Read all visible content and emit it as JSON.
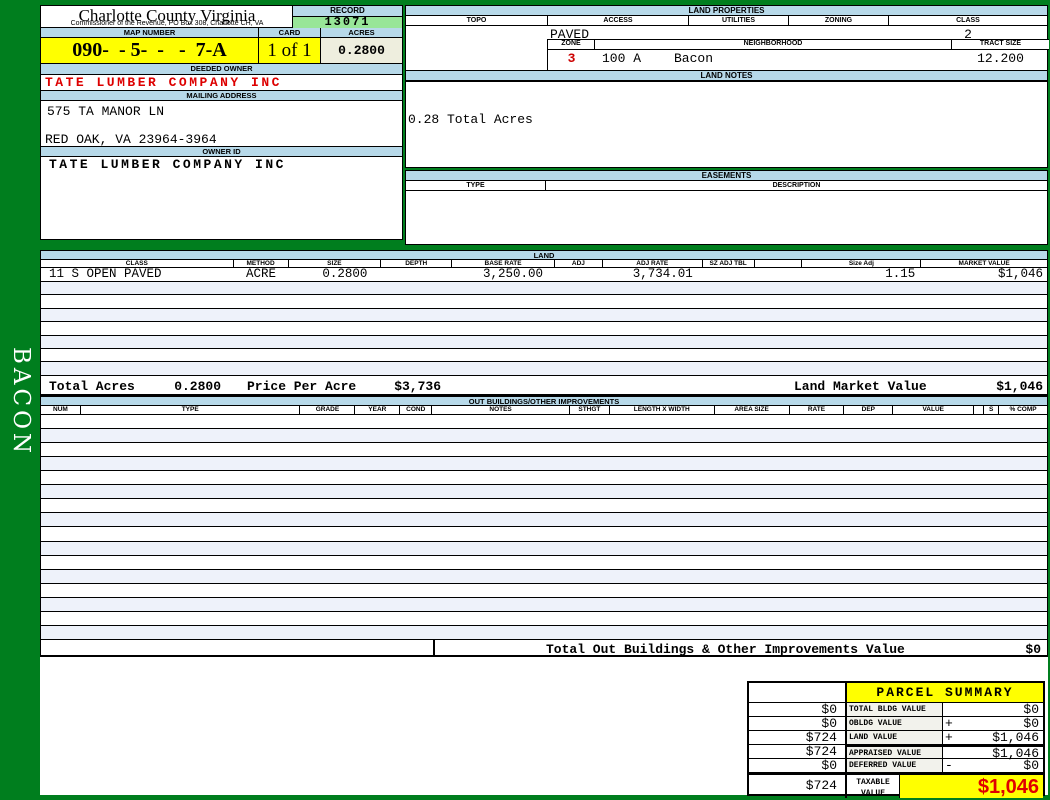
{
  "page": {
    "district_sidebar": "BACON"
  },
  "header": {
    "county_title": "Charlotte County Virginia",
    "commissioner_line": "Commissioner of the Revenue, PO Box 308, Charlotte CH, VA",
    "record_label": "RECORD",
    "record_value": "13071",
    "map_number_label": "MAP NUMBER",
    "map_number_value": "090-  - 5-  -   -  7-A",
    "card_label": "CARD",
    "card_value": "1 of 1",
    "acres_label": "ACRES",
    "acres_value": "0.2800"
  },
  "owner": {
    "deeded_owner_label": "DEEDED OWNER",
    "deeded_owner": "TATE LUMBER COMPANY INC",
    "mailing_address_label": "MAILING ADDRESS",
    "address_line1": "575 TA MANOR LN",
    "address_line2": "RED OAK, VA 23964-3964",
    "owner_id_label": "OWNER ID",
    "owner_id": "TATE LUMBER COMPANY INC"
  },
  "land_properties": {
    "title": "LAND PROPERTIES",
    "columns": [
      "TOPO",
      "ACCESS",
      "UTILITIES",
      "ZONING",
      "CLASS"
    ],
    "access_value": "PAVED",
    "class_value": "2",
    "zone_label": "ZONE",
    "zone_value": "3",
    "neighborhood_label": "NEIGHBORHOOD",
    "neighborhood_code": "100 A",
    "neighborhood_name": "Bacon",
    "tract_size_label": "TRACT SIZE",
    "tract_size_value": "12.200"
  },
  "land_notes": {
    "title": "LAND NOTES",
    "note": "0.28 Total Acres"
  },
  "easements": {
    "title": "EASEMENTS",
    "type_label": "TYPE",
    "description_label": "DESCRIPTION"
  },
  "land": {
    "title": "LAND",
    "columns": [
      "CLASS",
      "METHOD",
      "SIZE",
      "DEPTH",
      "BASE RATE",
      "ADJ",
      "ADJ RATE",
      "SZ ADJ TBL",
      "",
      "Size Adj",
      "MARKET VALUE"
    ],
    "row": {
      "class": "11 S OPEN PAVED",
      "method": "ACRE",
      "size": "0.2800",
      "depth": "",
      "base_rate": "3,250.00",
      "adj": "",
      "adj_rate": "3,734.01",
      "sz_adj_tbl": "",
      "size_adj": "1.15",
      "market_value": "$1,046"
    },
    "empty_row_count": 7,
    "totals": {
      "total_acres_label": "Total Acres",
      "total_acres": "0.2800",
      "price_per_acre_label": "Price Per Acre",
      "price_per_acre": "$3,736",
      "land_market_value_label": "Land Market Value",
      "land_market_value": "$1,046"
    }
  },
  "out_buildings": {
    "title": "OUT BUILDINGS/OTHER IMPROVEMENTS",
    "columns": [
      "NUM",
      "TYPE",
      "GRADE",
      "YEAR",
      "COND",
      "NOTES",
      "STHGT",
      "LENGTH X WIDTH",
      "AREA SIZE",
      "RATE",
      "DEP",
      "VALUE",
      "",
      "S",
      "% COMP"
    ],
    "empty_row_count": 16,
    "total_label": "Total Out Buildings & Other Improvements Value",
    "total_value": "$0"
  },
  "parcel_summary": {
    "title": "PARCEL SUMMARY",
    "rows": [
      {
        "left": "$0",
        "label": "TOTAL BLDG VALUE",
        "op": "",
        "value": "$0"
      },
      {
        "left": "$0",
        "label": "OBLDG VALUE",
        "op": "+",
        "value": "$0"
      },
      {
        "left": "$724",
        "label": "LAND VALUE",
        "op": "+",
        "value": "$1,046"
      },
      {
        "left": "$724",
        "label": "APPRAISED VALUE",
        "op": "",
        "value": "$1,046"
      },
      {
        "left": "$0",
        "label": "DEFERRED VALUE",
        "op": "-",
        "value": "$0"
      }
    ],
    "taxable": {
      "left": "$724",
      "label_line1": "TAXABLE",
      "label_line2": "VALUE",
      "value": "$1,046"
    }
  },
  "colors": {
    "page_green": "#007e1e",
    "header_blue": "#b7d9e9",
    "highlight_yellow": "#ffff00",
    "record_green": "#98e698",
    "acres_cream": "#eeeede",
    "alt_row_blue": "#eef2fa",
    "accent_red": "#dd0000"
  }
}
